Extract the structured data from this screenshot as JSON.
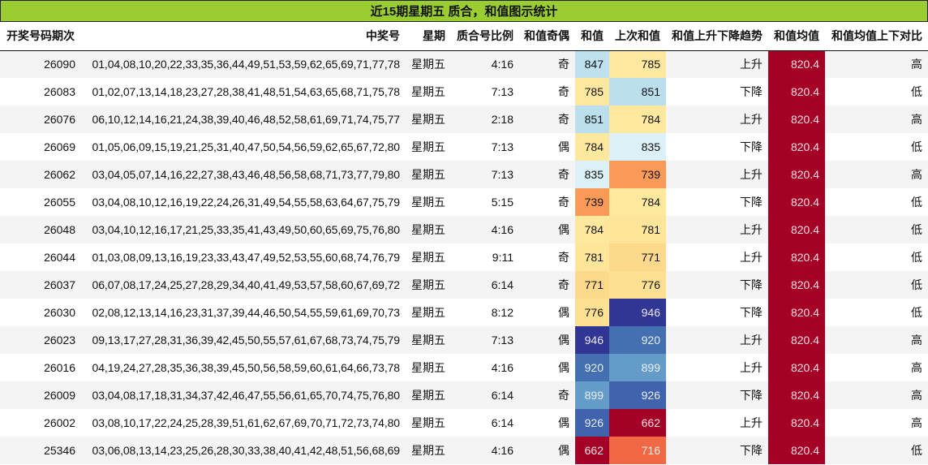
{
  "title": "近15期星期五 质合，和值图示统计",
  "columns": [
    {
      "key": "period",
      "label": "开奖号码期次"
    },
    {
      "key": "numbers",
      "label": "中奖号"
    },
    {
      "key": "weekday",
      "label": "星期"
    },
    {
      "key": "prime_ratio",
      "label": "质合号比例"
    },
    {
      "key": "sum_parity",
      "label": "和值奇偶"
    },
    {
      "key": "sum",
      "label": "和值"
    },
    {
      "key": "prev_sum",
      "label": "上次和值"
    },
    {
      "key": "trend",
      "label": "和值上升下降趋势"
    },
    {
      "key": "mean",
      "label": "和值均值"
    },
    {
      "key": "vs_mean",
      "label": "和值均值上下对比"
    }
  ],
  "colors": {
    "title_bg": "#9acd32",
    "mean_bg": "#a50026",
    "row_alt_bg": "#f4f4f4"
  },
  "rows": [
    {
      "period": "26090",
      "numbers": "01,04,08,10,20,22,33,35,36,44,49,51,53,59,62,65,69,71,77,78",
      "weekday": "星期五",
      "prime_ratio": "4:16",
      "sum_parity": "奇",
      "sum": "847",
      "sum_bg": "#bfe0ee",
      "sum_fg": "#111111",
      "prev_sum": "785",
      "prev_bg": "#fee8a0",
      "prev_fg": "#111111",
      "trend": "上升",
      "mean": "820.4",
      "vs_mean": "高"
    },
    {
      "period": "26083",
      "numbers": "01,02,07,13,14,18,23,27,28,38,41,48,51,54,63,65,68,71,75,78",
      "weekday": "星期五",
      "prime_ratio": "7:13",
      "sum_parity": "奇",
      "sum": "785",
      "sum_bg": "#fee8a0",
      "sum_fg": "#111111",
      "prev_sum": "851",
      "prev_bg": "#bcdfed",
      "prev_fg": "#111111",
      "trend": "下降",
      "mean": "820.4",
      "vs_mean": "低"
    },
    {
      "period": "26076",
      "numbers": "06,10,12,14,16,21,24,38,39,40,46,48,52,58,61,69,71,74,75,77",
      "weekday": "星期五",
      "prime_ratio": "2:18",
      "sum_parity": "奇",
      "sum": "851",
      "sum_bg": "#bcdfed",
      "sum_fg": "#111111",
      "prev_sum": "784",
      "prev_bg": "#fee89e",
      "prev_fg": "#111111",
      "trend": "上升",
      "mean": "820.4",
      "vs_mean": "高"
    },
    {
      "period": "26069",
      "numbers": "01,05,06,09,15,19,21,25,31,40,47,50,54,56,59,62,65,67,72,80",
      "weekday": "星期五",
      "prime_ratio": "7:13",
      "sum_parity": "偶",
      "sum": "784",
      "sum_bg": "#fee89e",
      "sum_fg": "#111111",
      "prev_sum": "835",
      "prev_bg": "#dcf0f7",
      "prev_fg": "#111111",
      "trend": "下降",
      "mean": "820.4",
      "vs_mean": "低"
    },
    {
      "period": "26062",
      "numbers": "03,04,05,07,14,16,22,27,38,43,46,48,56,58,68,71,73,77,79,80",
      "weekday": "星期五",
      "prime_ratio": "7:13",
      "sum_parity": "奇",
      "sum": "835",
      "sum_bg": "#dcf0f7",
      "sum_fg": "#111111",
      "prev_sum": "739",
      "prev_bg": "#f99b56",
      "prev_fg": "#111111",
      "trend": "上升",
      "mean": "820.4",
      "vs_mean": "高"
    },
    {
      "period": "26055",
      "numbers": "03,04,08,10,12,16,19,22,24,26,31,49,54,55,58,63,64,67,75,79",
      "weekday": "星期五",
      "prime_ratio": "5:15",
      "sum_parity": "奇",
      "sum": "739",
      "sum_bg": "#f99b56",
      "sum_fg": "#111111",
      "prev_sum": "784",
      "prev_bg": "#fee89e",
      "prev_fg": "#111111",
      "trend": "下降",
      "mean": "820.4",
      "vs_mean": "低"
    },
    {
      "period": "26048",
      "numbers": "03,04,10,12,16,17,21,25,33,35,41,43,49,50,60,65,69,75,76,80",
      "weekday": "星期五",
      "prime_ratio": "4:16",
      "sum_parity": "偶",
      "sum": "784",
      "sum_bg": "#fee89e",
      "sum_fg": "#111111",
      "prev_sum": "781",
      "prev_bg": "#fee59a",
      "prev_fg": "#111111",
      "trend": "上升",
      "mean": "820.4",
      "vs_mean": "低"
    },
    {
      "period": "26044",
      "numbers": "01,03,08,09,13,16,19,23,33,43,47,49,52,53,55,60,68,74,76,79",
      "weekday": "星期五",
      "prime_ratio": "9:11",
      "sum_parity": "奇",
      "sum": "781",
      "sum_bg": "#fee59a",
      "sum_fg": "#111111",
      "prev_sum": "771",
      "prev_bg": "#fdd98c",
      "prev_fg": "#111111",
      "trend": "上升",
      "mean": "820.4",
      "vs_mean": "低"
    },
    {
      "period": "26037",
      "numbers": "06,07,08,17,24,25,27,28,29,34,40,41,49,53,57,58,60,67,69,72",
      "weekday": "星期五",
      "prime_ratio": "6:14",
      "sum_parity": "奇",
      "sum": "771",
      "sum_bg": "#fdd98c",
      "sum_fg": "#111111",
      "prev_sum": "776",
      "prev_bg": "#fee093",
      "prev_fg": "#111111",
      "trend": "下降",
      "mean": "820.4",
      "vs_mean": "低"
    },
    {
      "period": "26030",
      "numbers": "02,08,12,13,14,16,23,31,37,39,44,46,50,54,55,59,61,69,70,73",
      "weekday": "星期五",
      "prime_ratio": "8:12",
      "sum_parity": "偶",
      "sum": "776",
      "sum_bg": "#fee093",
      "sum_fg": "#111111",
      "prev_sum": "946",
      "prev_bg": "#313695",
      "prev_fg": "#e8e8f4",
      "trend": "下降",
      "mean": "820.4",
      "vs_mean": "低"
    },
    {
      "period": "26023",
      "numbers": "09,13,17,27,28,31,36,39,42,45,50,55,57,61,67,68,73,74,75,79",
      "weekday": "星期五",
      "prime_ratio": "7:13",
      "sum_parity": "偶",
      "sum": "946",
      "sum_bg": "#313695",
      "sum_fg": "#e8e8f4",
      "prev_sum": "920",
      "prev_bg": "#4470b1",
      "prev_fg": "#e8eef6",
      "trend": "上升",
      "mean": "820.4",
      "vs_mean": "高"
    },
    {
      "period": "26016",
      "numbers": "04,19,24,27,28,35,36,38,39,45,50,56,58,59,60,61,64,66,73,78",
      "weekday": "星期五",
      "prime_ratio": "4:16",
      "sum_parity": "偶",
      "sum": "920",
      "sum_bg": "#4470b1",
      "sum_fg": "#e8eef6",
      "prev_sum": "899",
      "prev_bg": "#659bc8",
      "prev_fg": "#e8f0f8",
      "trend": "上升",
      "mean": "820.4",
      "vs_mean": "高"
    },
    {
      "period": "26009",
      "numbers": "03,04,08,17,18,31,34,37,42,46,47,55,56,61,65,70,74,75,76,80",
      "weekday": "星期五",
      "prime_ratio": "6:14",
      "sum_parity": "奇",
      "sum": "899",
      "sum_bg": "#659bc8",
      "sum_fg": "#e8f0f8",
      "prev_sum": "926",
      "prev_bg": "#3f63ac",
      "prev_fg": "#e8eef6",
      "trend": "下降",
      "mean": "820.4",
      "vs_mean": "高"
    },
    {
      "period": "26002",
      "numbers": "03,08,10,17,22,24,25,28,39,51,61,62,67,69,70,71,72,73,74,80",
      "weekday": "星期五",
      "prime_ratio": "6:14",
      "sum_parity": "偶",
      "sum": "926",
      "sum_bg": "#3f63ac",
      "sum_fg": "#e8eef6",
      "prev_sum": "662",
      "prev_bg": "#a50026",
      "prev_fg": "#f6e0e4",
      "trend": "上升",
      "mean": "820.4",
      "vs_mean": "高"
    },
    {
      "period": "25346",
      "numbers": "03,06,08,13,14,23,25,26,28,30,33,38,40,41,42,48,51,56,68,69",
      "weekday": "星期五",
      "prime_ratio": "4:16",
      "sum_parity": "偶",
      "sum": "662",
      "sum_bg": "#a50026",
      "sum_fg": "#f6e0e4",
      "prev_sum": "716",
      "prev_bg": "#f16844",
      "prev_fg": "#fbeee8",
      "trend": "下降",
      "mean": "820.4",
      "vs_mean": "低"
    }
  ]
}
